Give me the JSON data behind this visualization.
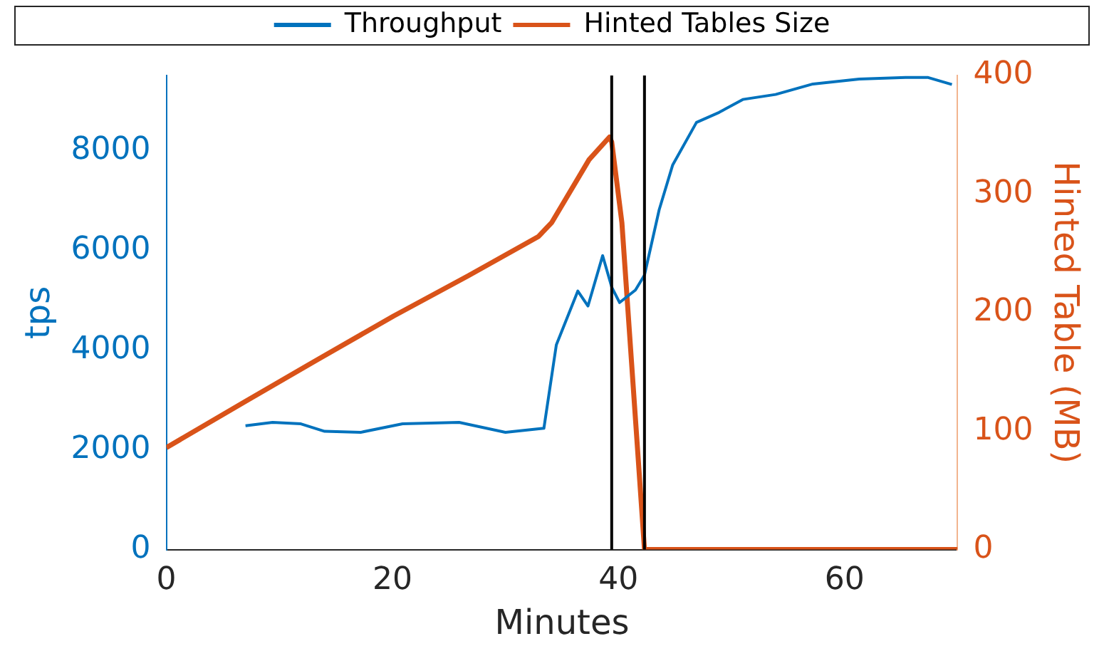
{
  "chart_data": {
    "type": "line",
    "xlabel": "Minutes",
    "ylabel": "tps",
    "y2label": "Hinted Table (MB)",
    "xlim": [
      0,
      70
    ],
    "xticks": [
      0,
      20,
      40,
      60
    ],
    "ylim": [
      0,
      9500
    ],
    "yticks": [
      0,
      2000,
      4000,
      6000,
      8000
    ],
    "y2lim": [
      0,
      400
    ],
    "y2ticks": [
      0,
      100,
      200,
      300,
      400
    ],
    "grid": false,
    "legend": "top",
    "marker": "none",
    "line_style": "solid",
    "series": [
      {
        "name": "Throughput",
        "color": "#0072bd",
        "x": [
          7.0,
          9.4,
          11.9,
          14.0,
          17.2,
          20.9,
          25.9,
          30.0,
          33.4,
          34.5,
          36.4,
          37.3,
          38.6,
          39.4,
          40.1,
          41.5,
          42.3,
          43.6,
          44.8,
          46.9,
          48.9,
          51.0,
          53.9,
          57.2,
          61.3,
          65.4,
          67.4,
          69.5
        ],
        "values": [
          2480,
          2550,
          2520,
          2370,
          2350,
          2520,
          2550,
          2350,
          2430,
          4100,
          5180,
          4880,
          5890,
          5260,
          4950,
          5200,
          5500,
          6810,
          7710,
          8560,
          8760,
          9020,
          9120,
          9330,
          9430,
          9460,
          9460,
          9320
        ]
      },
      {
        "name": "Hinted Tables Size",
        "color": "#d95319",
        "axis": "y2",
        "x": [
          0,
          7.0,
          13.5,
          20.1,
          26.7,
          32.9,
          34.1,
          37.4,
          39.2,
          39.4,
          40.3,
          42.3,
          70
        ],
        "values": [
          86,
          125,
          161,
          197,
          231,
          264,
          276,
          329,
          348,
          344,
          276,
          0,
          0
        ]
      }
    ],
    "ref_lines": [
      {
        "axis": "x",
        "value": 39.4,
        "color": "#000000"
      },
      {
        "axis": "x",
        "value": 42.3,
        "color": "#000000"
      }
    ]
  }
}
